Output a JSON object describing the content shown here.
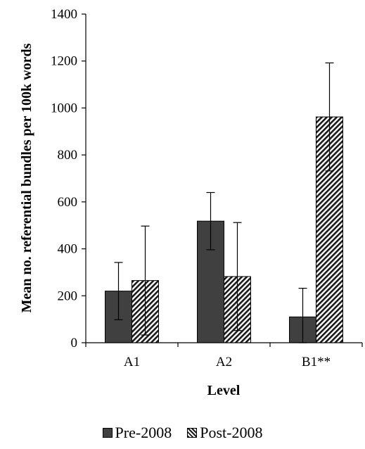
{
  "chart_data": {
    "type": "bar",
    "categories": [
      "A1",
      "A2",
      "B1**"
    ],
    "series": [
      {
        "name": "Pre-2008",
        "values": [
          220,
          518,
          110
        ],
        "error": [
          122,
          122,
          122
        ],
        "color": "#404040",
        "pattern": "solid"
      },
      {
        "name": "Post-2008",
        "values": [
          265,
          282,
          962
        ],
        "error": [
          232,
          230,
          230
        ],
        "color": "#d8d8d8",
        "pattern": "diagonal-hatch"
      }
    ],
    "xlabel": "Level",
    "ylabel": "Mean no. referential bundles per 100k words",
    "ylim": [
      0,
      1400
    ],
    "yticks": [
      0,
      200,
      400,
      600,
      800,
      1000,
      1200,
      1400
    ],
    "grid": false,
    "legend_position": "bottom"
  }
}
